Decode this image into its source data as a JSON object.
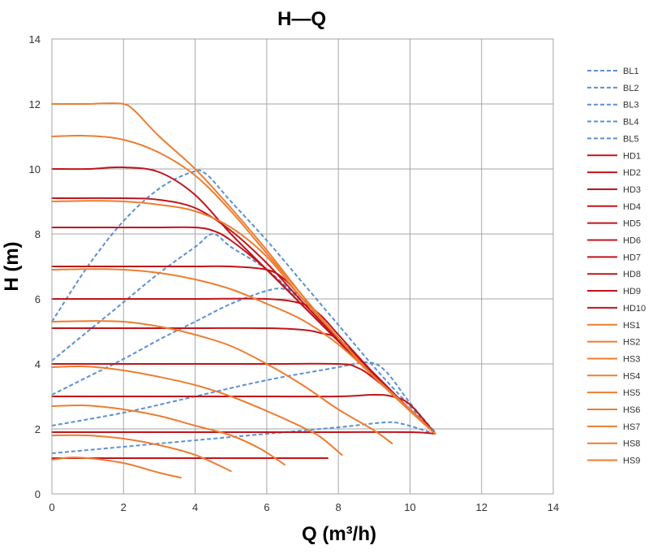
{
  "chart_data": {
    "type": "line",
    "title": "H—Q",
    "xlabel": "Q (m³/h)",
    "ylabel": "H (m)",
    "xlim": [
      0,
      14
    ],
    "ylim": [
      0,
      14
    ],
    "xticks": [
      0,
      2,
      4,
      6,
      8,
      10,
      12,
      14
    ],
    "yticks": [
      0,
      2,
      4,
      6,
      8,
      10,
      12,
      14
    ],
    "grid": true,
    "legend_position": "right",
    "series": [
      {
        "name": "BL1",
        "color": "#5b8fd6",
        "dash": true,
        "points": [
          [
            0,
            5.3
          ],
          [
            1,
            7.0
          ],
          [
            2,
            8.4
          ],
          [
            3,
            9.4
          ],
          [
            3.9,
            9.9
          ],
          [
            4.3,
            9.85
          ],
          [
            5,
            9.0
          ],
          [
            6,
            7.8
          ],
          [
            7,
            6.5
          ],
          [
            8,
            5.2
          ],
          [
            9,
            3.9
          ],
          [
            10,
            2.7
          ],
          [
            10.7,
            1.9
          ]
        ]
      },
      {
        "name": "BL2",
        "color": "#5b8fd6",
        "dash": true,
        "points": [
          [
            0,
            4.1
          ],
          [
            1,
            5.0
          ],
          [
            2,
            5.9
          ],
          [
            3,
            6.8
          ],
          [
            4,
            7.6
          ],
          [
            4.5,
            8.0
          ],
          [
            5,
            7.6
          ],
          [
            6,
            6.9
          ],
          [
            7,
            5.9
          ],
          [
            8,
            4.8
          ],
          [
            9,
            3.7
          ],
          [
            10,
            2.6
          ],
          [
            10.7,
            1.9
          ]
        ]
      },
      {
        "name": "BL3",
        "color": "#5b8fd6",
        "dash": true,
        "points": [
          [
            0,
            3.05
          ],
          [
            1,
            3.6
          ],
          [
            2,
            4.15
          ],
          [
            3,
            4.75
          ],
          [
            4,
            5.3
          ],
          [
            5,
            5.85
          ],
          [
            6,
            6.25
          ],
          [
            6.5,
            6.3
          ],
          [
            7,
            6.0
          ],
          [
            8,
            4.8
          ],
          [
            9,
            3.6
          ],
          [
            10,
            2.6
          ],
          [
            10.7,
            1.9
          ]
        ]
      },
      {
        "name": "BL4",
        "color": "#5b8fd6",
        "dash": true,
        "points": [
          [
            0,
            2.1
          ],
          [
            2,
            2.5
          ],
          [
            4,
            3.0
          ],
          [
            6,
            3.5
          ],
          [
            8,
            3.9
          ],
          [
            8.8,
            4.05
          ],
          [
            9.3,
            3.8
          ],
          [
            10,
            2.8
          ],
          [
            10.7,
            1.9
          ]
        ]
      },
      {
        "name": "BL5",
        "color": "#5b8fd6",
        "dash": true,
        "points": [
          [
            0,
            1.25
          ],
          [
            2,
            1.45
          ],
          [
            4,
            1.65
          ],
          [
            6,
            1.85
          ],
          [
            8,
            2.05
          ],
          [
            9.3,
            2.2
          ],
          [
            9.8,
            2.15
          ],
          [
            10.7,
            1.85
          ]
        ]
      },
      {
        "name": "HD1",
        "color": "#c0141b",
        "dash": false,
        "points": [
          [
            0,
            10.0
          ],
          [
            1,
            10.0
          ],
          [
            2,
            10.05
          ],
          [
            3,
            9.9
          ],
          [
            4,
            9.2
          ],
          [
            5,
            8.0
          ],
          [
            6,
            6.9
          ],
          [
            7,
            5.8
          ],
          [
            8,
            4.7
          ],
          [
            9,
            3.6
          ],
          [
            10,
            2.6
          ],
          [
            10.7,
            1.85
          ]
        ]
      },
      {
        "name": "HD2",
        "color": "#c0141b",
        "dash": false,
        "points": [
          [
            0,
            9.1
          ],
          [
            2,
            9.1
          ],
          [
            3,
            9.05
          ],
          [
            4,
            8.8
          ],
          [
            5,
            8.1
          ],
          [
            6,
            7.1
          ],
          [
            7,
            5.9
          ],
          [
            8,
            4.75
          ],
          [
            9,
            3.6
          ],
          [
            10,
            2.6
          ],
          [
            10.7,
            1.85
          ]
        ]
      },
      {
        "name": "HD3",
        "color": "#c0141b",
        "dash": false,
        "points": [
          [
            0,
            8.2
          ],
          [
            3,
            8.2
          ],
          [
            4,
            8.2
          ],
          [
            4.5,
            8.1
          ],
          [
            5,
            7.8
          ],
          [
            6,
            6.9
          ],
          [
            7,
            5.8
          ],
          [
            8,
            4.7
          ],
          [
            9,
            3.6
          ],
          [
            10,
            2.6
          ],
          [
            10.7,
            1.85
          ]
        ]
      },
      {
        "name": "HD4",
        "color": "#c0141b",
        "dash": false,
        "points": [
          [
            0,
            7.0
          ],
          [
            3,
            7.0
          ],
          [
            4,
            7.0
          ],
          [
            5,
            7.0
          ],
          [
            6,
            6.9
          ],
          [
            6.5,
            6.6
          ],
          [
            7,
            6.0
          ],
          [
            8,
            4.8
          ],
          [
            9,
            3.65
          ],
          [
            10,
            2.6
          ],
          [
            10.7,
            1.85
          ]
        ]
      },
      {
        "name": "HD5",
        "color": "#c0141b",
        "dash": false,
        "points": [
          [
            0,
            6.0
          ],
          [
            2,
            6.0
          ],
          [
            4,
            6.0
          ],
          [
            6,
            6.0
          ],
          [
            7,
            5.85
          ],
          [
            7.5,
            5.5
          ],
          [
            8,
            4.9
          ],
          [
            9,
            3.7
          ],
          [
            10,
            2.6
          ],
          [
            10.7,
            1.85
          ]
        ]
      },
      {
        "name": "HD6",
        "color": "#c0141b",
        "dash": false,
        "points": [
          [
            0,
            5.1
          ],
          [
            2,
            5.1
          ],
          [
            4,
            5.1
          ],
          [
            6,
            5.1
          ],
          [
            7,
            5.05
          ],
          [
            7.5,
            4.95
          ],
          [
            8,
            4.75
          ],
          [
            9,
            3.7
          ],
          [
            10,
            2.6
          ],
          [
            10.7,
            1.85
          ]
        ]
      },
      {
        "name": "HD7",
        "color": "#c0141b",
        "dash": false,
        "points": [
          [
            0,
            4.0
          ],
          [
            2,
            4.0
          ],
          [
            4,
            4.0
          ],
          [
            6,
            4.0
          ],
          [
            8,
            4.0
          ],
          [
            8.5,
            3.9
          ],
          [
            9,
            3.55
          ],
          [
            10,
            2.6
          ],
          [
            10.7,
            1.85
          ]
        ]
      },
      {
        "name": "HD8",
        "color": "#c0141b",
        "dash": false,
        "points": [
          [
            0,
            3.0
          ],
          [
            2,
            3.0
          ],
          [
            4,
            3.0
          ],
          [
            6,
            3.0
          ],
          [
            8,
            3.0
          ],
          [
            9,
            3.05
          ],
          [
            9.5,
            3.0
          ],
          [
            10,
            2.75
          ],
          [
            10.7,
            1.85
          ]
        ]
      },
      {
        "name": "HD9",
        "color": "#c0141b",
        "dash": false,
        "points": [
          [
            0,
            1.9
          ],
          [
            2,
            1.9
          ],
          [
            4,
            1.9
          ],
          [
            6,
            1.9
          ],
          [
            8,
            1.9
          ],
          [
            10,
            1.9
          ],
          [
            10.7,
            1.85
          ]
        ]
      },
      {
        "name": "HD10",
        "color": "#c0141b",
        "dash": false,
        "points": [
          [
            0,
            1.1
          ],
          [
            2,
            1.1
          ],
          [
            4,
            1.1
          ],
          [
            6,
            1.1
          ],
          [
            7.7,
            1.1
          ]
        ]
      },
      {
        "name": "HS1",
        "color": "#ed7d31",
        "dash": false,
        "points": [
          [
            0,
            12.0
          ],
          [
            1,
            12.0
          ],
          [
            1.5,
            12.02
          ],
          [
            2,
            12.0
          ],
          [
            2.3,
            11.8
          ],
          [
            3,
            11.0
          ],
          [
            4,
            10.0
          ],
          [
            5,
            8.8
          ],
          [
            6,
            7.5
          ],
          [
            7,
            6.1
          ],
          [
            8,
            4.8
          ],
          [
            9,
            3.6
          ],
          [
            10,
            2.55
          ],
          [
            10.7,
            1.85
          ]
        ]
      },
      {
        "name": "HS2",
        "color": "#ed7d31",
        "dash": false,
        "points": [
          [
            0,
            11.0
          ],
          [
            1,
            11.02
          ],
          [
            2,
            10.9
          ],
          [
            3,
            10.5
          ],
          [
            4,
            9.8
          ],
          [
            5,
            8.7
          ],
          [
            6,
            7.4
          ],
          [
            7,
            6.1
          ],
          [
            8,
            4.8
          ],
          [
            9,
            3.6
          ],
          [
            10,
            2.6
          ],
          [
            10.7,
            1.85
          ]
        ]
      },
      {
        "name": "HS3",
        "color": "#ed7d31",
        "dash": false,
        "points": [
          [
            0,
            9.0
          ],
          [
            1,
            9.02
          ],
          [
            2,
            9.0
          ],
          [
            3,
            8.9
          ],
          [
            4,
            8.7
          ],
          [
            5,
            8.2
          ],
          [
            6,
            7.3
          ],
          [
            7,
            6.0
          ],
          [
            8,
            4.8
          ],
          [
            9,
            3.6
          ],
          [
            10,
            2.6
          ],
          [
            10.7,
            1.85
          ]
        ]
      },
      {
        "name": "HS4",
        "color": "#ed7d31",
        "dash": false,
        "points": [
          [
            0,
            6.9
          ],
          [
            1,
            6.92
          ],
          [
            2,
            6.9
          ],
          [
            3,
            6.8
          ],
          [
            4,
            6.6
          ],
          [
            5,
            6.3
          ],
          [
            6,
            5.85
          ],
          [
            7,
            5.35
          ],
          [
            8,
            4.6
          ],
          [
            9,
            3.6
          ],
          [
            10,
            2.6
          ],
          [
            10.7,
            1.85
          ]
        ]
      },
      {
        "name": "HS5",
        "color": "#ed7d31",
        "dash": false,
        "points": [
          [
            0,
            5.3
          ],
          [
            1,
            5.32
          ],
          [
            2,
            5.3
          ],
          [
            3,
            5.15
          ],
          [
            4,
            4.9
          ],
          [
            5,
            4.55
          ],
          [
            6,
            4.0
          ],
          [
            7,
            3.35
          ],
          [
            8,
            2.6
          ],
          [
            9,
            1.95
          ],
          [
            9.5,
            1.55
          ]
        ]
      },
      {
        "name": "HS6",
        "color": "#ed7d31",
        "dash": false,
        "points": [
          [
            0,
            3.9
          ],
          [
            1,
            3.92
          ],
          [
            2,
            3.8
          ],
          [
            3,
            3.6
          ],
          [
            4,
            3.35
          ],
          [
            5,
            3.0
          ],
          [
            6,
            2.55
          ],
          [
            7,
            2.05
          ],
          [
            7.5,
            1.75
          ],
          [
            8.1,
            1.2
          ]
        ]
      },
      {
        "name": "HS7",
        "color": "#ed7d31",
        "dash": false,
        "points": [
          [
            0,
            2.7
          ],
          [
            1,
            2.72
          ],
          [
            2,
            2.6
          ],
          [
            3,
            2.4
          ],
          [
            4,
            2.1
          ],
          [
            5,
            1.8
          ],
          [
            5.8,
            1.4
          ],
          [
            6.5,
            0.9
          ]
        ]
      },
      {
        "name": "HS8",
        "color": "#ed7d31",
        "dash": false,
        "points": [
          [
            0,
            1.8
          ],
          [
            1,
            1.8
          ],
          [
            2,
            1.7
          ],
          [
            3,
            1.5
          ],
          [
            4,
            1.2
          ],
          [
            5,
            0.7
          ]
        ]
      },
      {
        "name": "HS9",
        "color": "#ed7d31",
        "dash": false,
        "points": [
          [
            0,
            1.05
          ],
          [
            0.5,
            1.12
          ],
          [
            1,
            1.1
          ],
          [
            2,
            0.95
          ],
          [
            3,
            0.65
          ],
          [
            3.6,
            0.5
          ]
        ]
      }
    ]
  }
}
